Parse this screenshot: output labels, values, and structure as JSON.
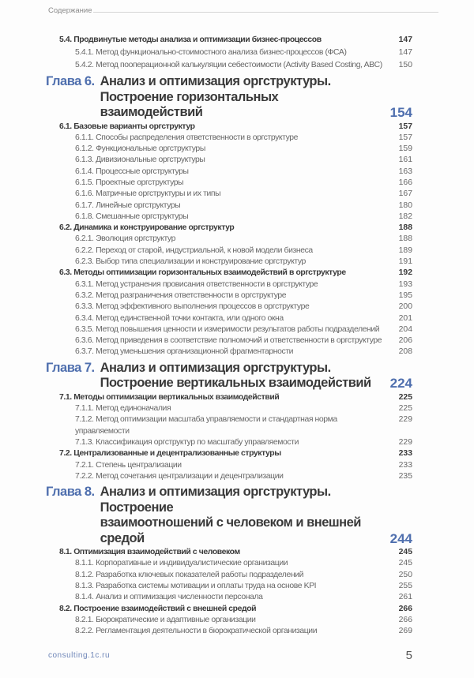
{
  "header": {
    "title": "Содержание"
  },
  "toc": [
    {
      "type": "entries",
      "items": [
        {
          "level": 2,
          "num": "5.4.",
          "title": "Продвинутые методы анализа и оптимизации бизнес-процессов",
          "page": "147"
        },
        {
          "level": 3,
          "num": "5.4.1.",
          "title": "Метод функционально-стоимостного анализа бизнес-процессов (ФСА)",
          "page": "147"
        },
        {
          "level": 3,
          "num": "5.4.2.",
          "title": "Метод пооперационной калькуляции себестоимости (Activity Based Costing, ABC)",
          "page": "150"
        }
      ]
    },
    {
      "type": "chapter",
      "label": "Глава 6.",
      "lines": [
        "Анализ и оптимизация оргструктуры.",
        "Построение горизонтальных взаимодействий"
      ],
      "page": "154"
    },
    {
      "type": "entries",
      "items": [
        {
          "level": 2,
          "num": "6.1.",
          "title": "Базовые варианты оргструктур",
          "page": "157"
        },
        {
          "level": 3,
          "num": "6.1.1.",
          "title": "Способы распределения ответственности в оргструктуре",
          "page": "157"
        },
        {
          "level": 3,
          "num": "6.1.2.",
          "title": "Функциональные оргструктуры",
          "page": "159"
        },
        {
          "level": 3,
          "num": "6.1.3.",
          "title": "Дивизиональные оргструктуры",
          "page": "161"
        },
        {
          "level": 3,
          "num": "6.1.4.",
          "title": "Процессные оргструктуры",
          "page": "163"
        },
        {
          "level": 3,
          "num": "6.1.5.",
          "title": "Проектные оргструктуры",
          "page": "166"
        },
        {
          "level": 3,
          "num": "6.1.6.",
          "title": "Матричные оргструктуры и их типы",
          "page": "167"
        },
        {
          "level": 3,
          "num": "6.1.7.",
          "title": "Линейные оргструктуры",
          "page": "180"
        },
        {
          "level": 3,
          "num": "6.1.8.",
          "title": "Смешанные оргструктуры",
          "page": "182"
        },
        {
          "level": 2,
          "num": "6.2.",
          "title": "Динамика и конструирование оргструктур",
          "page": "188"
        },
        {
          "level": 3,
          "num": "6.2.1.",
          "title": "Эволюция оргструктур",
          "page": "188"
        },
        {
          "level": 3,
          "num": "6.2.2.",
          "title": "Переход от старой, индустриальной, к новой модели бизнеса",
          "page": "189"
        },
        {
          "level": 3,
          "num": "6.2.3.",
          "title": "Выбор типа специализации и конструирование оргструктур",
          "page": "191"
        },
        {
          "level": 2,
          "num": "6.3.",
          "title": "Методы оптимизации горизонтальных взаимодействий в оргструктуре",
          "page": "192"
        },
        {
          "level": 3,
          "num": "6.3.1.",
          "title": "Метод устранения провисания ответственности в оргструктуре",
          "page": "193"
        },
        {
          "level": 3,
          "num": "6.3.2.",
          "title": "Метод разграничения ответственности в оргструктуре",
          "page": "195"
        },
        {
          "level": 3,
          "num": "6.3.3.",
          "title": "Метод эффективного выполнения процессов в оргструктуре",
          "page": "200"
        },
        {
          "level": 3,
          "num": "6.3.4.",
          "title": "Метод единственной точки контакта, или одного окна",
          "page": "201"
        },
        {
          "level": 3,
          "num": "6.3.5.",
          "title": "Метод повышения ценности и измеримости результатов работы подразделений",
          "page": "204"
        },
        {
          "level": 3,
          "num": "6.3.6.",
          "title": "Метод приведения в соответствие полномочий и ответственности в оргструктуре",
          "page": "206"
        },
        {
          "level": 3,
          "num": "6.3.7.",
          "title": "Метод уменьшения организационной фрагментарности",
          "page": "208"
        }
      ]
    },
    {
      "type": "chapter",
      "label": "Глава 7.",
      "lines": [
        "Анализ и оптимизация оргструктуры.",
        "Построение вертикальных взаимодействий"
      ],
      "page": "224"
    },
    {
      "type": "entries",
      "items": [
        {
          "level": 2,
          "num": "7.1.",
          "title": "Методы оптимизации вертикальных взаимодействий",
          "page": "225"
        },
        {
          "level": 3,
          "num": "7.1.1.",
          "title": "Метод единоначалия",
          "page": "225"
        },
        {
          "level": 3,
          "num": "7.1.2.",
          "title": "Метод оптимизации масштаба управляемости и стандартная норма управляемости",
          "page": "229"
        },
        {
          "level": 3,
          "num": "7.1.3.",
          "title": "Классификация оргструктур по масштабу управляемости",
          "page": "229"
        },
        {
          "level": 2,
          "num": "7.2.",
          "title": "Централизованные и децентрализованные структуры",
          "page": "233"
        },
        {
          "level": 3,
          "num": "7.2.1.",
          "title": "Степень централизации",
          "page": "233"
        },
        {
          "level": 3,
          "num": "7.2.2.",
          "title": "Метод сочетания централизации и децентрализации",
          "page": "235"
        }
      ]
    },
    {
      "type": "chapter",
      "label": "Глава 8.",
      "lines": [
        "Анализ и оптимизация оргструктуры. Построение",
        "взаимоотношений с человеком и внешней средой"
      ],
      "page": "244"
    },
    {
      "type": "entries",
      "items": [
        {
          "level": 2,
          "num": "8.1.",
          "title": "Оптимизация взаимодействий с человеком",
          "page": "245"
        },
        {
          "level": 3,
          "num": "8.1.1.",
          "title": "Корпоративные и индивидуалистические организации",
          "page": "245"
        },
        {
          "level": 3,
          "num": "8.1.2.",
          "title": "Разработка ключевых показателей работы подразделений",
          "page": "250"
        },
        {
          "level": 3,
          "num": "8.1.3.",
          "title": "Разработка системы мотивации и оплаты труда на основе KPI",
          "page": "255"
        },
        {
          "level": 3,
          "num": "8.1.4.",
          "title": "Анализ и оптимизация численности персонала",
          "page": "261"
        },
        {
          "level": 2,
          "num": "8.2.",
          "title": "Построение взаимодействий с внешней средой",
          "page": "266"
        },
        {
          "level": 3,
          "num": "8.2.1.",
          "title": "Бюрократические и адаптивные организации",
          "page": "266"
        },
        {
          "level": 3,
          "num": "8.2.2.",
          "title": "Регламентация деятельности в бюрократической организации",
          "page": "269"
        }
      ]
    }
  ],
  "footer": {
    "site": "consulting.1c.ru",
    "page_number": "5"
  }
}
